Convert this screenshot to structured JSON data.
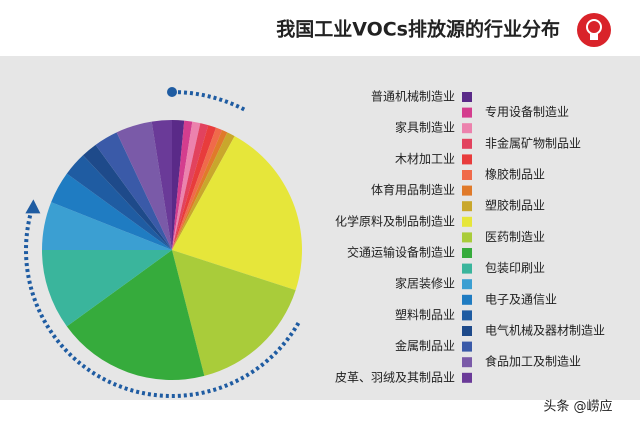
{
  "chart_data": {
    "type": "pie",
    "title": "我国工业VOCs排放源的行业分布",
    "categories": [
      "普通机械制造业",
      "专用设备制造业",
      "家具制造业",
      "非金属矿物制品业",
      "木材加工业",
      "橡胶制品业",
      "体育用品制造业",
      "塑胶制品业",
      "化学原料及制品制造业",
      "医药制造业",
      "交通运输设备制造业",
      "包装印刷业",
      "家居装修业",
      "电子及通信业",
      "塑料制品业",
      "电气机械及器材制造业",
      "金属制品业",
      "食品加工及制造业",
      "皮革、羽绒及其制品业"
    ],
    "values": [
      1.5,
      1,
      1,
      1,
      1,
      0.8,
      0.7,
      1,
      22,
      16,
      19,
      10,
      6,
      4,
      3,
      2,
      3,
      4.5,
      2.5
    ],
    "colors": [
      "#5a2a88",
      "#d43d8e",
      "#ec82ad",
      "#e2425e",
      "#e83c3c",
      "#f06a4a",
      "#e07a2a",
      "#c9a72c",
      "#e6e63a",
      "#a9cc3a",
      "#36ab3c",
      "#3ab59c",
      "#3b9fd2",
      "#1f7cc2",
      "#1f5ca2",
      "#1e4a8a",
      "#3a5aa8",
      "#7a5aa8",
      "#6a3a98"
    ]
  },
  "footer": "头条 @崂应"
}
